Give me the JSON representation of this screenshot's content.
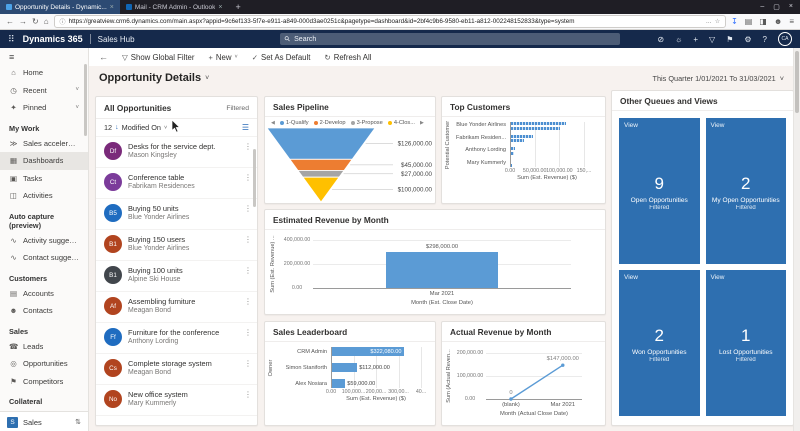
{
  "browser": {
    "tabs": [
      {
        "title": "Opportunity Details - Dynamic...",
        "active": true
      },
      {
        "title": "Mail - CRM Admin - Outlook",
        "active": false
      }
    ],
    "url": "https://greatview.crm6.dynamics.com/main.aspx?appid=9c6ef133-5f7e-e911-a849-000d3ae0251c&pagetype=dashboard&id=2bf4c9b6-9580-eb11-a812-002248152833&type=system"
  },
  "icons": {
    "new_tab": "+",
    "minimize": "–",
    "maximize": "▢",
    "close": "×",
    "back_nav": "←",
    "forward_nav": "→",
    "reload": "↻",
    "home": "⌂",
    "info": "ⓘ",
    "ellipsis": "…",
    "star": "☆",
    "download": "↧",
    "library": "▤",
    "sidebar_toggle": "◨",
    "account": "☻",
    "menu": "≡",
    "waffle": "⠿",
    "search": "⚲",
    "compass": "⊘",
    "lightbulb": "☼",
    "plus": "+",
    "funnel": "▽",
    "flag": "⚑",
    "gear": "⚙",
    "help": "?",
    "back": "←",
    "check": "✓",
    "refresh": "↻",
    "chevron_down": "˅",
    "hamburger": "≡",
    "sort_desc": "↓",
    "view_selector": "☰",
    "updown": "⇅",
    "kebab": "⋮",
    "legend_left": "◀",
    "legend_right": "▶"
  },
  "topnav": {
    "brand": "Dynamics 365",
    "app": "Sales Hub",
    "search_placeholder": "Search",
    "avatar_initials": "CA"
  },
  "command_bar": {
    "show_global_filter": "Show Global Filter",
    "new": "New",
    "set_as_default": "Set As Default",
    "refresh_all": "Refresh All"
  },
  "page": {
    "title": "Opportunity Details",
    "date_filter": "This Quarter 1/01/2021 To 31/03/2021"
  },
  "sidebar": {
    "sections": [
      {
        "header": null,
        "items": [
          {
            "icon": "⌂",
            "label": "Home"
          },
          {
            "icon": "◷",
            "label": "Recent",
            "chevron": true
          },
          {
            "icon": "✦",
            "label": "Pinned",
            "chevron": true
          }
        ]
      },
      {
        "header": "My Work",
        "items": [
          {
            "icon": "≫",
            "label": "Sales accelerator"
          },
          {
            "icon": "▦",
            "label": "Dashboards",
            "selected": true
          },
          {
            "icon": "▣",
            "label": "Tasks"
          },
          {
            "icon": "◫",
            "label": "Activities"
          }
        ]
      },
      {
        "header": "Auto capture (preview)",
        "items": [
          {
            "icon": "∿",
            "label": "Activity suggestions"
          },
          {
            "icon": "∿",
            "label": "Contact suggestio..."
          }
        ]
      },
      {
        "header": "Customers",
        "items": [
          {
            "icon": "▤",
            "label": "Accounts"
          },
          {
            "icon": "☻",
            "label": "Contacts"
          }
        ]
      },
      {
        "header": "Sales",
        "items": [
          {
            "icon": "☎",
            "label": "Leads"
          },
          {
            "icon": "◎",
            "label": "Opportunities"
          },
          {
            "icon": "⚑",
            "label": "Competitors"
          }
        ]
      },
      {
        "header": "Collateral",
        "items": [
          {
            "icon": "▱",
            "label": "Quotes"
          },
          {
            "icon": "▥",
            "label": "Orders"
          }
        ]
      }
    ],
    "footer": {
      "badge": "S",
      "label": "Sales"
    }
  },
  "opportunities": {
    "title": "All Opportunities",
    "filter_status": "Filtered",
    "count": "12",
    "sort": "Modified On",
    "items": [
      {
        "initials": "Df",
        "color": "#7a2a7a",
        "title": "Desks for the service dept.",
        "subtitle": "Mason Kingsley"
      },
      {
        "initials": "Ct",
        "color": "#7b3b9a",
        "title": "Conference table",
        "subtitle": "Fabrikam Residences"
      },
      {
        "initials": "B5",
        "color": "#1f6cc0",
        "title": "Buying 50 units",
        "subtitle": "Blue Yonder Airlines"
      },
      {
        "initials": "B1",
        "color": "#b1441f",
        "title": "Buying 150 users",
        "subtitle": "Blue Yonder Airlines"
      },
      {
        "initials": "B1",
        "color": "#41464c",
        "title": "Buying 100 units",
        "subtitle": "Alpine Ski House"
      },
      {
        "initials": "Af",
        "color": "#b1441f",
        "title": "Assembling furniture",
        "subtitle": "Meagan Bond"
      },
      {
        "initials": "Ff",
        "color": "#1f6cc0",
        "title": "Furniture for the conference",
        "subtitle": "Anthony Lording"
      },
      {
        "initials": "Cs",
        "color": "#b1441f",
        "title": "Complete storage system",
        "subtitle": "Meagan Bond"
      },
      {
        "initials": "No",
        "color": "#b1441f",
        "title": "New office system",
        "subtitle": "Mary Kummerly"
      }
    ]
  },
  "charts": {
    "funnel": {
      "type": "funnel",
      "title": "Sales Pipeline",
      "legend": [
        {
          "label": "1-Qualify",
          "color": "#5b9bd5"
        },
        {
          "label": "2-Develop",
          "color": "#ed7d31"
        },
        {
          "label": "3-Propose",
          "color": "#a5a5a5"
        },
        {
          "label": "4-Clos...",
          "color": "#ffc000"
        }
      ],
      "segments": [
        {
          "label": "$126,000.00",
          "value": 126000,
          "color": "#5b9bd5"
        },
        {
          "label": "$45,000.00",
          "value": 45000,
          "color": "#ed7d31"
        },
        {
          "label": "$27,000.00",
          "value": 27000,
          "color": "#a5a5a5"
        },
        {
          "label": "$100,000.00",
          "value": 100000,
          "color": "#ffc000"
        }
      ]
    },
    "top_customers": {
      "type": "bar",
      "title": "Top Customers",
      "ylabel": "Potential Customer",
      "xlabel": "Sum (Est. Revenue) ($)",
      "xticks": [
        "0.00",
        "50,000.00",
        "100,000.00",
        "150,..."
      ],
      "xmax": 150000,
      "groups": [
        {
          "label": "Blue Yonder Airlines",
          "values": [
            113000,
            100000
          ]
        },
        {
          "label": "Fabrikam Residen...",
          "values": [
            45000,
            27000
          ]
        },
        {
          "label": "Anthony Lording",
          "values": [
            9000,
            8000
          ]
        },
        {
          "label": "Mary Kummerly",
          "values": [
            1500,
            2500
          ]
        }
      ]
    },
    "est_revenue": {
      "type": "bar",
      "title": "Estimated Revenue by Month",
      "ylabel": "Sum (Est. Revenue) ...",
      "xlabel": "Month (Est. Close Date)",
      "yticks": [
        "400,000.00",
        "200,000.00",
        "0.00"
      ],
      "ymax": 400000,
      "bars": [
        {
          "label": "Mar 2021",
          "value": 298000,
          "data_label": "$298,000.00"
        }
      ]
    },
    "leaderboard": {
      "type": "bar",
      "title": "Sales Leaderboard",
      "ylabel": "Owner",
      "xlabel": "Sum (Est. Revenue) ($)",
      "xticks": [
        "0.00",
        "100,000...",
        "200,00...",
        "300,00...",
        "40..."
      ],
      "xmax": 400000,
      "bars": [
        {
          "label": "CRM Admin",
          "value": 322080,
          "data_label": "$322,080.00",
          "label_inside": true
        },
        {
          "label": "Simon Staniforth",
          "value": 112000,
          "data_label": "$112,000.00",
          "label_inside": false
        },
        {
          "label": "Alex Nosiara",
          "value": 59000,
          "data_label": "$59,000.00",
          "label_inside": false
        }
      ]
    },
    "actual_revenue": {
      "type": "line",
      "title": "Actual Revenue by Month",
      "ylabel": "Sum (Actual Reven...",
      "xlabel": "Month (Actual Close Date)",
      "yticks": [
        "200,000.00",
        "100,000.00",
        "0.00"
      ],
      "ymax": 200000,
      "line_color": "#5b9bd5",
      "points": [
        {
          "label": "(blank)",
          "value": 0,
          "data_label": "0"
        },
        {
          "label": "Mar 2021",
          "value": 147000,
          "data_label": "$147,000.00"
        }
      ]
    }
  },
  "tiles": {
    "title": "Other Queues and Views",
    "tile_label": "View",
    "items": [
      {
        "count": "9",
        "name": "Open Opportunities",
        "sub": "Filtered"
      },
      {
        "count": "2",
        "name": "My Open Opportunities",
        "sub": "Filtered"
      },
      {
        "count": "2",
        "name": "Won Opportunities",
        "sub": "Filtered"
      },
      {
        "count": "1",
        "name": "Lost Opportunities",
        "sub": "Filtered"
      }
    ]
  }
}
